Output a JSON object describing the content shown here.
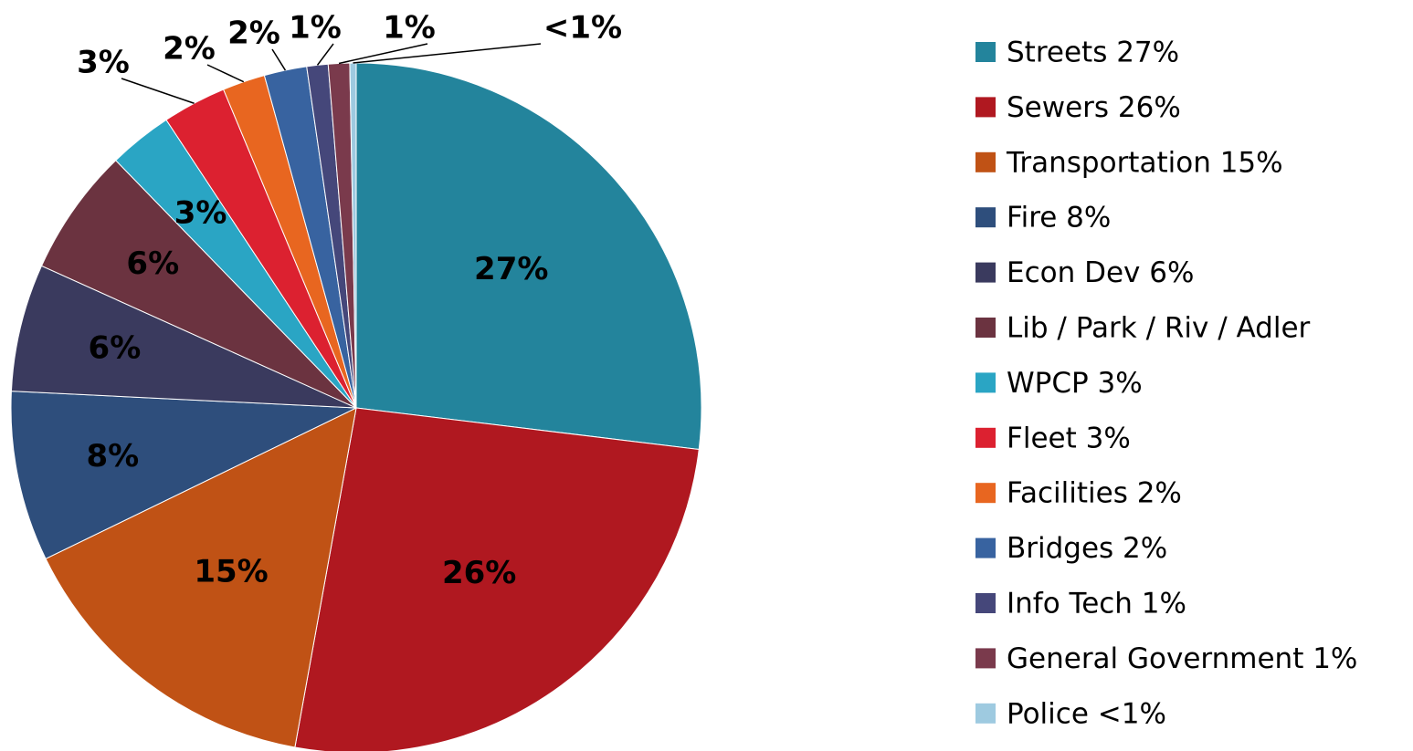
{
  "chart_data": {
    "type": "pie",
    "categories": [
      "Streets 27%",
      "Sewers 26%",
      "Transportation 15%",
      "Fire 8%",
      "Econ Dev 6%",
      "Lib / Park / Riv / Adler",
      "WPCP 3%",
      "Fleet 3%",
      "Facilities 2%",
      "Bridges 2%",
      "Info Tech 1%",
      "General Government 1%",
      "Police <1%"
    ],
    "values": [
      27,
      26,
      15,
      8,
      6,
      6,
      3,
      3,
      2,
      2,
      1,
      1,
      0.3
    ],
    "value_labels": [
      "27%",
      "26%",
      "15%",
      "8%",
      "6%",
      "6%",
      "3%",
      "3%",
      "2%",
      "2%",
      "1%",
      "1%",
      "<1%"
    ],
    "colors": [
      "#23849c",
      "#b01820",
      "#c05215",
      "#2e4e7c",
      "#3a3a5e",
      "#6b3340",
      "#2aa5c4",
      "#dc2130",
      "#e86620",
      "#3863a0",
      "#45477a",
      "#7a3a4c",
      "#9ecae0"
    ],
    "legend": "right"
  }
}
